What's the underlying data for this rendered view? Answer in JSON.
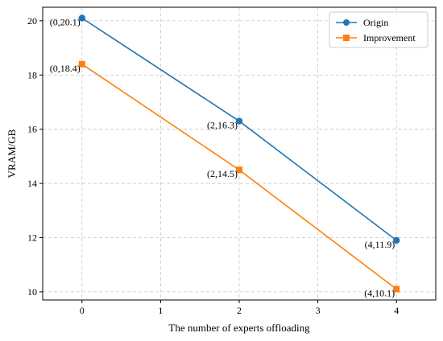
{
  "chart_data": {
    "type": "line",
    "title": "",
    "xlabel": "The number of experts offloading",
    "ylabel": "VRAM/GB",
    "xlim": [
      -0.5,
      4.5
    ],
    "ylim": [
      9.7,
      20.5
    ],
    "xticks": [
      0,
      1,
      2,
      3,
      4
    ],
    "yticks": [
      10,
      12,
      14,
      16,
      18,
      20
    ],
    "grid": true,
    "legend_position": "top-right",
    "series": [
      {
        "name": "Origin",
        "color": "#1f77b4",
        "marker": "circle",
        "x": [
          0,
          2,
          4
        ],
        "y": [
          20.1,
          16.3,
          11.9
        ],
        "labels": [
          "(0,20.1)",
          "(2,16.3)",
          "(4,11.9)"
        ]
      },
      {
        "name": "Improvement",
        "color": "#ff7f0e",
        "marker": "square",
        "x": [
          0,
          2,
          4
        ],
        "y": [
          18.4,
          14.5,
          10.1
        ],
        "labels": [
          "(0,18.4)",
          "(2,14.5)",
          "(4,10.1)"
        ]
      }
    ]
  }
}
